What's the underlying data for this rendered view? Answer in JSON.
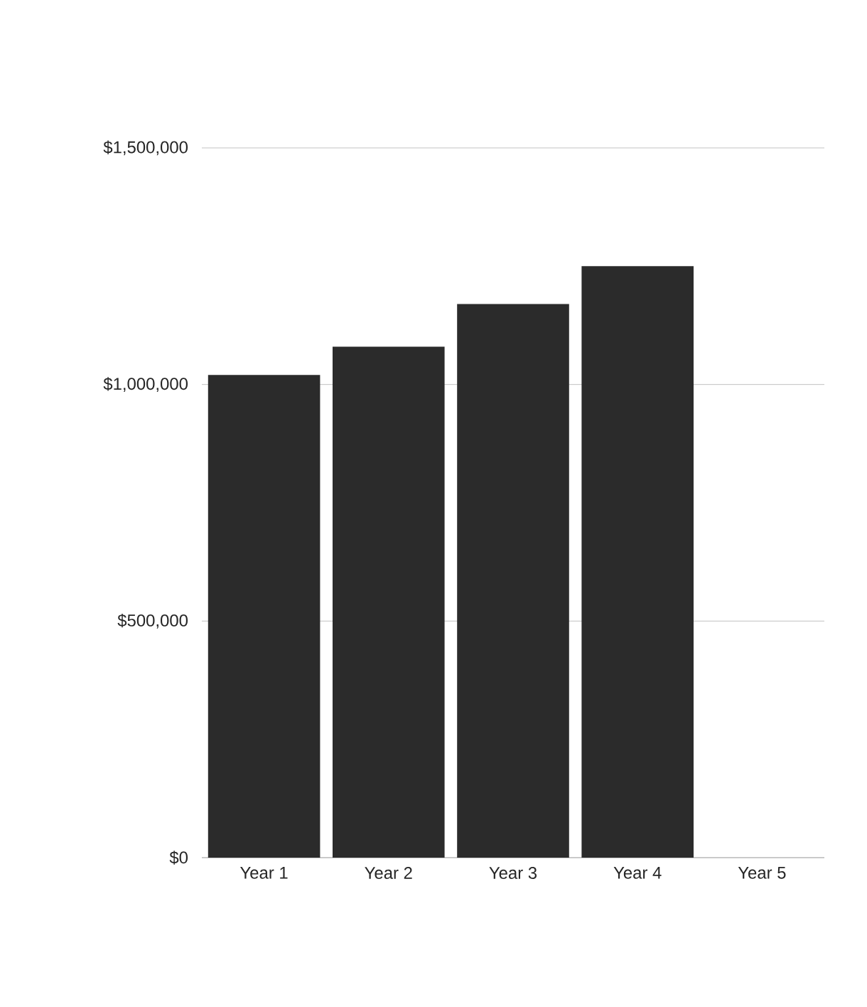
{
  "chart_data": {
    "type": "bar",
    "categories": [
      "Year 1",
      "Year 2",
      "Year 3",
      "Year 4",
      "Year 5"
    ],
    "values": [
      1020000,
      1080000,
      1170000,
      1250000,
      null
    ],
    "color": "#2b2b2b",
    "ylim": [
      0,
      1500000
    ],
    "yticks": [
      {
        "value": 0,
        "label": "$0"
      },
      {
        "value": 500000,
        "label": "$500,000"
      },
      {
        "value": 1000000,
        "label": "$1,000,000"
      },
      {
        "value": 1500000,
        "label": "$1,500,000"
      }
    ],
    "grid": "y"
  }
}
